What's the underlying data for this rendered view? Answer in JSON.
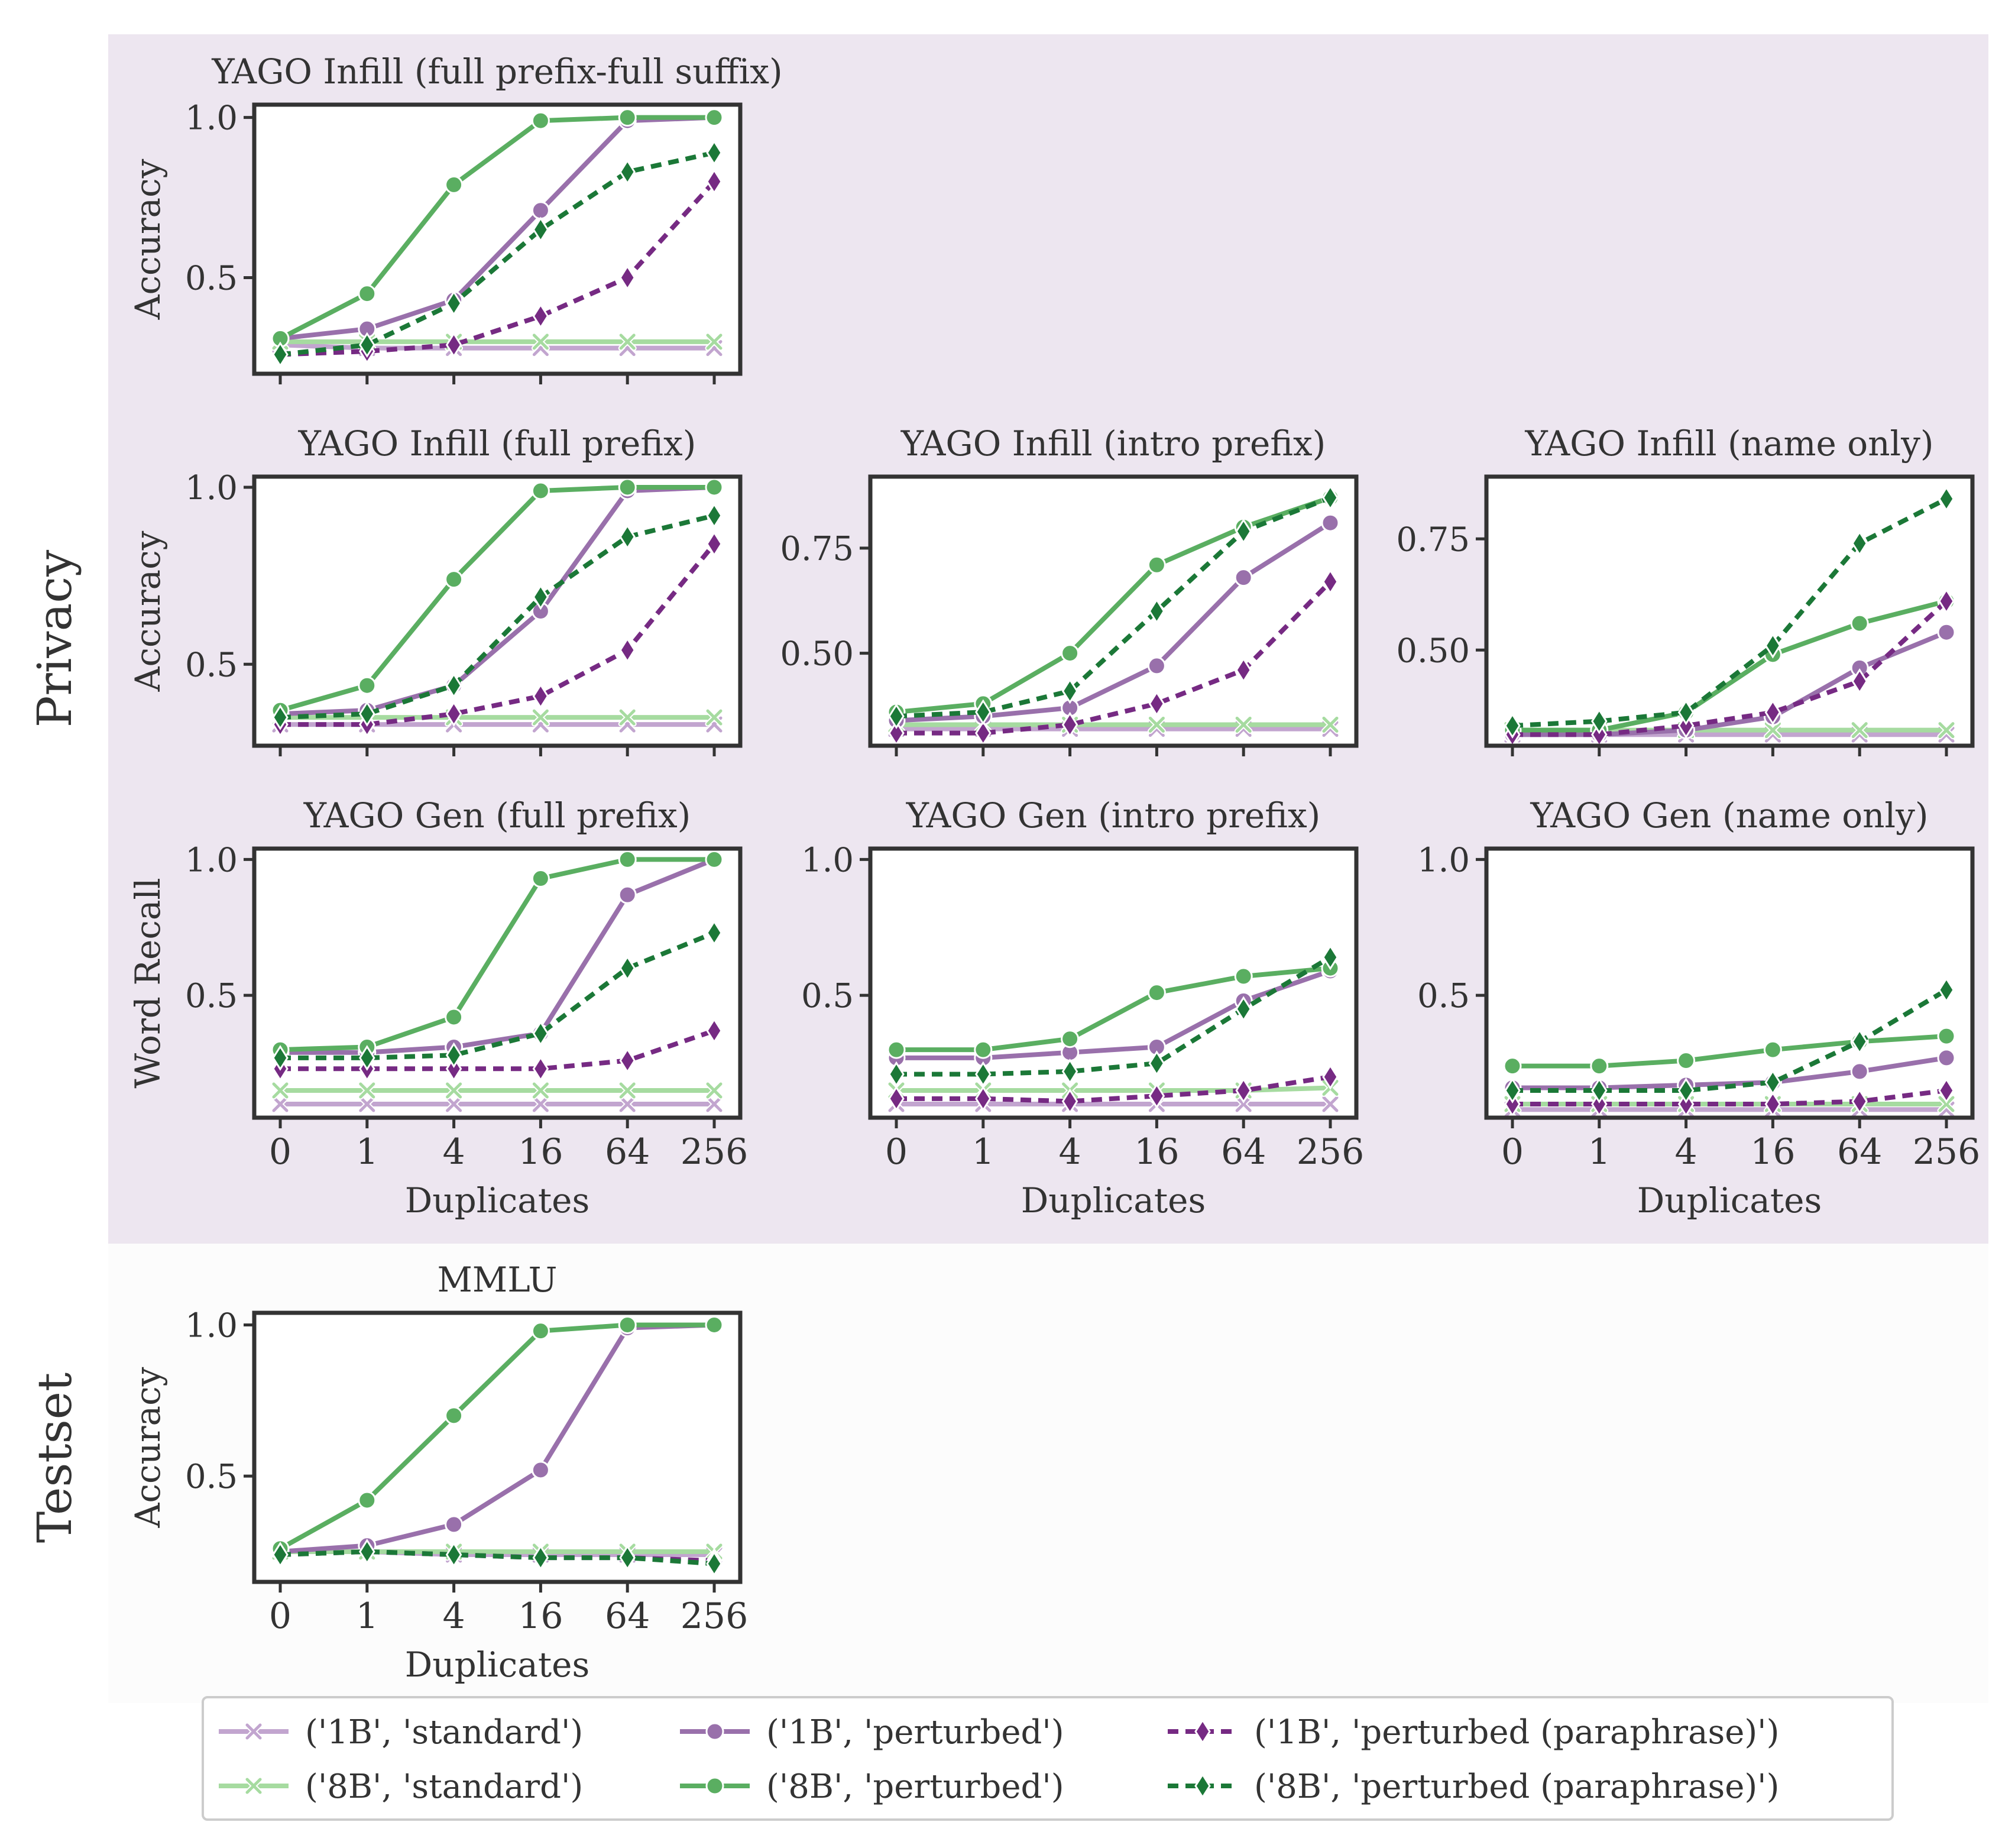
{
  "figure": {
    "x_label": "Duplicates",
    "sections": [
      {
        "id": "privacy",
        "label": "Privacy",
        "background": "#ede6f0"
      },
      {
        "id": "testset",
        "label": "Testset",
        "background": "#fcfcfc"
      }
    ]
  },
  "legend": [
    {
      "label": "('1B', 'standard')",
      "color": "#c2a5cf",
      "marker": "x",
      "dash": "solid"
    },
    {
      "label": "('1B', 'perturbed')",
      "color": "#9970ab",
      "marker": "circle",
      "dash": "solid"
    },
    {
      "label": "('1B', 'perturbed (paraphrase)')",
      "color": "#762a83",
      "marker": "diamond",
      "dash": "dashed"
    },
    {
      "label": "('8B', 'standard')",
      "color": "#a6dba0",
      "marker": "x",
      "dash": "solid"
    },
    {
      "label": "('8B', 'perturbed')",
      "color": "#5aae61",
      "marker": "circle",
      "dash": "solid"
    },
    {
      "label": "('8B', 'perturbed (paraphrase)')",
      "color": "#1b7837",
      "marker": "diamond",
      "dash": "dashed"
    }
  ],
  "chart_data": [
    {
      "type": "line",
      "section": "privacy",
      "title": "YAGO Infill (full prefix-full suffix)",
      "ylabel": "Accuracy",
      "x": [
        "0",
        "1",
        "4",
        "16",
        "64",
        "256"
      ],
      "ylim": [
        0.2,
        1.04
      ],
      "yticks": [
        "0.5",
        "1.0"
      ],
      "show_xticklabels": false,
      "series": [
        {
          "name": "('1B', 'standard')",
          "values": [
            0.29,
            0.28,
            0.28,
            0.28,
            0.28,
            0.28
          ]
        },
        {
          "name": "('8B', 'standard')",
          "values": [
            0.3,
            0.3,
            0.3,
            0.3,
            0.3,
            0.3
          ]
        },
        {
          "name": "('1B', 'perturbed')",
          "values": [
            0.31,
            0.34,
            0.43,
            0.71,
            0.99,
            1.0
          ]
        },
        {
          "name": "('8B', 'perturbed')",
          "values": [
            0.31,
            0.45,
            0.79,
            0.99,
            1.0,
            1.0
          ]
        },
        {
          "name": "('1B', 'perturbed (paraphrase)')",
          "values": [
            0.26,
            0.27,
            0.29,
            0.38,
            0.5,
            0.8
          ]
        },
        {
          "name": "('8B', 'perturbed (paraphrase)')",
          "values": [
            0.26,
            0.29,
            0.42,
            0.65,
            0.83,
            0.89
          ]
        }
      ]
    },
    {
      "type": "line",
      "section": "privacy",
      "title": "YAGO Infill (full prefix)",
      "ylabel": "Accuracy",
      "x": [
        "0",
        "1",
        "4",
        "16",
        "64",
        "256"
      ],
      "ylim": [
        0.27,
        1.03
      ],
      "yticks": [
        "0.5",
        "1.0"
      ],
      "show_xticklabels": false,
      "series": [
        {
          "name": "('1B', 'standard')",
          "values": [
            0.33,
            0.33,
            0.33,
            0.33,
            0.33,
            0.33
          ]
        },
        {
          "name": "('8B', 'standard')",
          "values": [
            0.35,
            0.35,
            0.35,
            0.35,
            0.35,
            0.35
          ]
        },
        {
          "name": "('1B', 'perturbed')",
          "values": [
            0.36,
            0.37,
            0.44,
            0.65,
            0.99,
            1.0
          ]
        },
        {
          "name": "('8B', 'perturbed')",
          "values": [
            0.37,
            0.44,
            0.74,
            0.99,
            1.0,
            1.0
          ]
        },
        {
          "name": "('1B', 'perturbed (paraphrase)')",
          "values": [
            0.33,
            0.33,
            0.36,
            0.41,
            0.54,
            0.84
          ]
        },
        {
          "name": "('8B', 'perturbed (paraphrase)')",
          "values": [
            0.35,
            0.36,
            0.44,
            0.69,
            0.86,
            0.92
          ]
        }
      ]
    },
    {
      "type": "line",
      "section": "privacy",
      "title": "YAGO Infill (intro prefix)",
      "ylabel": "",
      "x": [
        "0",
        "1",
        "4",
        "16",
        "64",
        "256"
      ],
      "ylim": [
        0.28,
        0.92
      ],
      "yticks": [
        "0.50",
        "0.75"
      ],
      "show_xticklabels": false,
      "series": [
        {
          "name": "('1B', 'standard')",
          "values": [
            0.32,
            0.32,
            0.32,
            0.32,
            0.32,
            0.32
          ]
        },
        {
          "name": "('8B', 'standard')",
          "values": [
            0.33,
            0.33,
            0.33,
            0.33,
            0.33,
            0.33
          ]
        },
        {
          "name": "('1B', 'perturbed')",
          "values": [
            0.34,
            0.35,
            0.37,
            0.47,
            0.68,
            0.81
          ]
        },
        {
          "name": "('8B', 'perturbed')",
          "values": [
            0.36,
            0.38,
            0.5,
            0.71,
            0.8,
            0.87
          ]
        },
        {
          "name": "('1B', 'perturbed (paraphrase)')",
          "values": [
            0.31,
            0.31,
            0.33,
            0.38,
            0.46,
            0.67
          ]
        },
        {
          "name": "('8B', 'perturbed (paraphrase)')",
          "values": [
            0.35,
            0.36,
            0.41,
            0.6,
            0.79,
            0.87
          ]
        }
      ]
    },
    {
      "type": "line",
      "section": "privacy",
      "title": "YAGO Infill (name only)",
      "ylabel": "",
      "x": [
        "0",
        "1",
        "4",
        "16",
        "64",
        "256"
      ],
      "ylim": [
        0.285,
        0.89
      ],
      "yticks": [
        "0.50",
        "0.75"
      ],
      "show_xticklabels": false,
      "series": [
        {
          "name": "('1B', 'standard')",
          "values": [
            0.31,
            0.31,
            0.31,
            0.31,
            0.31,
            0.31
          ]
        },
        {
          "name": "('8B', 'standard')",
          "values": [
            0.32,
            0.32,
            0.32,
            0.32,
            0.32,
            0.32
          ]
        },
        {
          "name": "('1B', 'perturbed')",
          "values": [
            0.31,
            0.31,
            0.32,
            0.35,
            0.46,
            0.54
          ]
        },
        {
          "name": "('8B', 'perturbed')",
          "values": [
            0.32,
            0.32,
            0.36,
            0.49,
            0.56,
            0.61
          ]
        },
        {
          "name": "('1B', 'perturbed (paraphrase)')",
          "values": [
            0.31,
            0.31,
            0.33,
            0.36,
            0.43,
            0.61
          ]
        },
        {
          "name": "('8B', 'perturbed (paraphrase)')",
          "values": [
            0.33,
            0.34,
            0.36,
            0.51,
            0.74,
            0.84
          ]
        }
      ]
    },
    {
      "type": "line",
      "section": "privacy",
      "title": "YAGO Gen (full prefix)",
      "ylabel": "Word Recall",
      "x": [
        "0",
        "1",
        "4",
        "16",
        "64",
        "256"
      ],
      "ylim": [
        0.05,
        1.04
      ],
      "yticks": [
        "0.5",
        "1.0"
      ],
      "show_xticklabels": true,
      "series": [
        {
          "name": "('1B', 'standard')",
          "values": [
            0.1,
            0.1,
            0.1,
            0.1,
            0.1,
            0.1
          ]
        },
        {
          "name": "('8B', 'standard')",
          "values": [
            0.15,
            0.15,
            0.15,
            0.15,
            0.15,
            0.15
          ]
        },
        {
          "name": "('1B', 'perturbed')",
          "values": [
            0.29,
            0.29,
            0.31,
            0.36,
            0.87,
            1.0
          ]
        },
        {
          "name": "('8B', 'perturbed')",
          "values": [
            0.3,
            0.31,
            0.42,
            0.93,
            1.0,
            1.0
          ]
        },
        {
          "name": "('1B', 'perturbed (paraphrase)')",
          "values": [
            0.23,
            0.23,
            0.23,
            0.23,
            0.26,
            0.37
          ]
        },
        {
          "name": "('8B', 'perturbed (paraphrase)')",
          "values": [
            0.27,
            0.27,
            0.28,
            0.36,
            0.6,
            0.73
          ]
        }
      ]
    },
    {
      "type": "line",
      "section": "privacy",
      "title": "YAGO Gen (intro prefix)",
      "ylabel": "",
      "x": [
        "0",
        "1",
        "4",
        "16",
        "64",
        "256"
      ],
      "ylim": [
        0.05,
        1.04
      ],
      "yticks": [
        "0.5",
        "1.0"
      ],
      "show_xticklabels": true,
      "series": [
        {
          "name": "('1B', 'standard')",
          "values": [
            0.1,
            0.1,
            0.1,
            0.1,
            0.1,
            0.1
          ]
        },
        {
          "name": "('8B', 'standard')",
          "values": [
            0.15,
            0.15,
            0.15,
            0.15,
            0.15,
            0.16
          ]
        },
        {
          "name": "('1B', 'perturbed')",
          "values": [
            0.27,
            0.27,
            0.29,
            0.31,
            0.48,
            0.59
          ]
        },
        {
          "name": "('8B', 'perturbed')",
          "values": [
            0.3,
            0.3,
            0.34,
            0.51,
            0.57,
            0.6
          ]
        },
        {
          "name": "('1B', 'perturbed (paraphrase)')",
          "values": [
            0.12,
            0.12,
            0.11,
            0.13,
            0.15,
            0.2
          ]
        },
        {
          "name": "('8B', 'perturbed (paraphrase)')",
          "values": [
            0.21,
            0.21,
            0.22,
            0.25,
            0.45,
            0.64
          ]
        }
      ]
    },
    {
      "type": "line",
      "section": "privacy",
      "title": "YAGO Gen (name only)",
      "ylabel": "",
      "x": [
        "0",
        "1",
        "4",
        "16",
        "64",
        "256"
      ],
      "ylim": [
        0.05,
        1.04
      ],
      "yticks": [
        "0.5",
        "1.0"
      ],
      "show_xticklabels": true,
      "series": [
        {
          "name": "('1B', 'standard')",
          "values": [
            0.08,
            0.08,
            0.08,
            0.08,
            0.08,
            0.08
          ]
        },
        {
          "name": "('8B', 'standard')",
          "values": [
            0.1,
            0.1,
            0.1,
            0.1,
            0.1,
            0.1
          ]
        },
        {
          "name": "('1B', 'perturbed')",
          "values": [
            0.16,
            0.16,
            0.17,
            0.18,
            0.22,
            0.27
          ]
        },
        {
          "name": "('8B', 'perturbed')",
          "values": [
            0.24,
            0.24,
            0.26,
            0.3,
            0.33,
            0.35
          ]
        },
        {
          "name": "('1B', 'perturbed (paraphrase)')",
          "values": [
            0.1,
            0.1,
            0.1,
            0.1,
            0.11,
            0.15
          ]
        },
        {
          "name": "('8B', 'perturbed (paraphrase)')",
          "values": [
            0.15,
            0.15,
            0.15,
            0.18,
            0.33,
            0.52
          ]
        }
      ]
    },
    {
      "type": "line",
      "section": "testset",
      "title": "MMLU",
      "ylabel": "Accuracy",
      "x": [
        "0",
        "1",
        "4",
        "16",
        "64",
        "256"
      ],
      "ylim": [
        0.15,
        1.04
      ],
      "yticks": [
        "0.5",
        "1.0"
      ],
      "show_xticklabels": true,
      "series": [
        {
          "name": "('1B', 'standard')",
          "values": [
            0.25,
            0.25,
            0.24,
            0.24,
            0.24,
            0.24
          ]
        },
        {
          "name": "('8B', 'standard')",
          "values": [
            0.25,
            0.25,
            0.25,
            0.25,
            0.25,
            0.25
          ]
        },
        {
          "name": "('1B', 'perturbed')",
          "values": [
            0.25,
            0.27,
            0.34,
            0.52,
            0.99,
            1.0
          ]
        },
        {
          "name": "('8B', 'perturbed')",
          "values": [
            0.26,
            0.42,
            0.7,
            0.98,
            1.0,
            1.0
          ]
        },
        {
          "name": "('1B', 'perturbed (paraphrase)')",
          "values": [
            0.24,
            0.25,
            0.24,
            0.23,
            0.23,
            0.22
          ]
        },
        {
          "name": "('8B', 'perturbed (paraphrase)')",
          "values": [
            0.24,
            0.25,
            0.24,
            0.23,
            0.23,
            0.21
          ]
        }
      ]
    }
  ]
}
